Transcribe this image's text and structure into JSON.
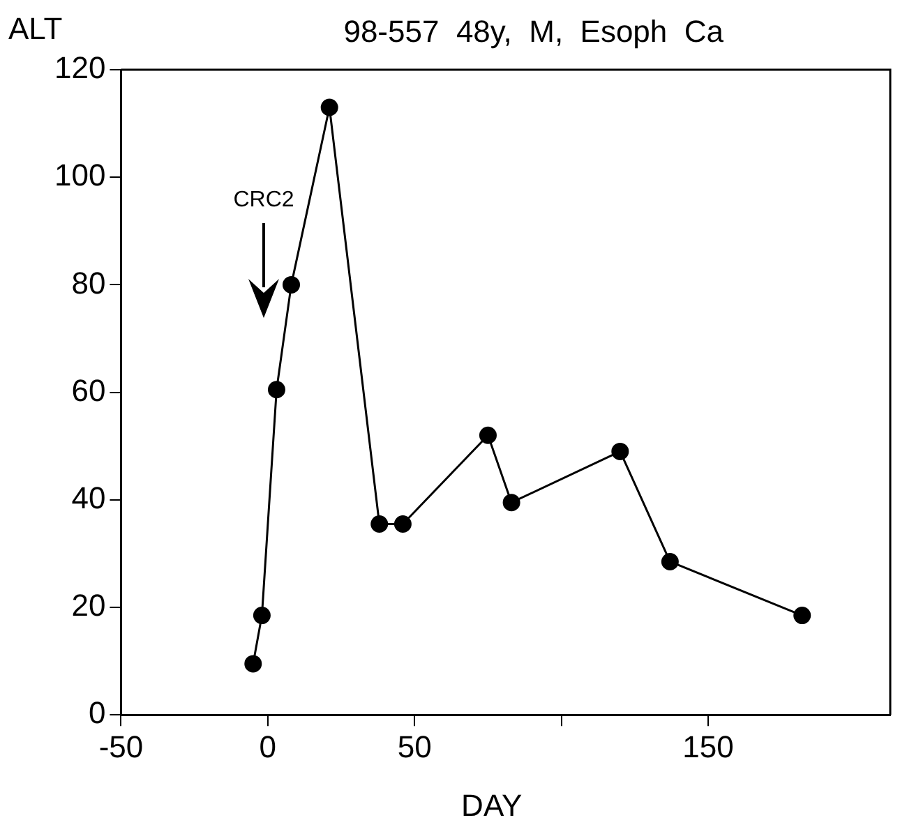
{
  "chart_data": {
    "type": "line",
    "title": "98-557  48y,  M,  Esoph  Ca",
    "ylabel": "ALT",
    "xlabel": "DAY",
    "x": [
      -5,
      -2,
      3,
      8,
      21,
      38,
      46,
      75,
      83,
      120,
      137,
      182
    ],
    "series": [
      {
        "color": "#000000",
        "values": [
          9.5,
          18.5,
          60.5,
          80,
          113,
          35.5,
          35.5,
          52,
          39.5,
          49,
          28.5,
          18.5
        ]
      }
    ],
    "xlim": [
      -50,
      212
    ],
    "xticks": [
      -50,
      0,
      50,
      {
        "value": 100,
        "label": null
      },
      150
    ],
    "ylim": [
      0,
      120
    ],
    "yticks": [
      0,
      20,
      40,
      60,
      80,
      100,
      120
    ],
    "annotations": [
      "CRC2"
    ],
    "grid": false,
    "legend": false,
    "marker": "circle",
    "line_style": "solid"
  }
}
